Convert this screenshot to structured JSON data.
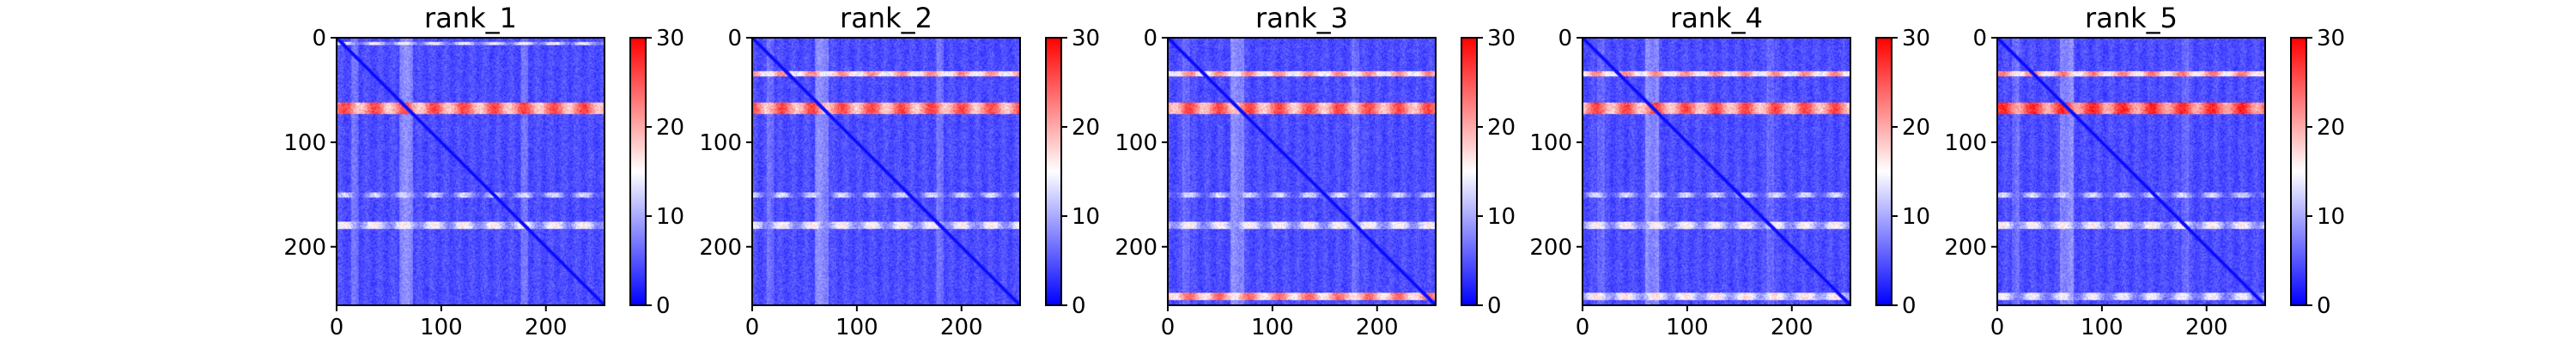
{
  "chart_data": [
    {
      "type": "heatmap",
      "title": "rank_1",
      "matrix_size": 256,
      "xlim": [
        0,
        256
      ],
      "ylim": [
        256,
        0
      ],
      "xticks": [
        0,
        100,
        200
      ],
      "yticks": [
        0,
        100,
        200
      ],
      "colorbar": {
        "range": [
          0,
          30
        ],
        "ticks": [
          0,
          10,
          20,
          30
        ],
        "colormap": "bwr"
      },
      "bands": [
        {
          "rows": [
            62,
            72
          ],
          "level": 22
        },
        {
          "rows": [
            176,
            182
          ],
          "level": 12
        },
        {
          "rows": [
            4,
            6
          ],
          "level": 11
        },
        {
          "rows": [
            148,
            152
          ],
          "level": 9
        }
      ],
      "background_level": 4.5,
      "diagonal_level": 0
    },
    {
      "type": "heatmap",
      "title": "rank_2",
      "matrix_size": 256,
      "xlim": [
        0,
        256
      ],
      "ylim": [
        256,
        0
      ],
      "xticks": [
        0,
        100,
        200
      ],
      "yticks": [
        0,
        100,
        200
      ],
      "colorbar": {
        "range": [
          0,
          30
        ],
        "ticks": [
          0,
          10,
          20,
          30
        ],
        "colormap": "bwr"
      },
      "bands": [
        {
          "rows": [
            32,
            36
          ],
          "level": 18
        },
        {
          "rows": [
            62,
            72
          ],
          "level": 22
        },
        {
          "rows": [
            176,
            182
          ],
          "level": 12
        },
        {
          "rows": [
            148,
            152
          ],
          "level": 9
        }
      ],
      "background_level": 4.5,
      "diagonal_level": 0
    },
    {
      "type": "heatmap",
      "title": "rank_3",
      "matrix_size": 256,
      "xlim": [
        0,
        256
      ],
      "ylim": [
        256,
        0
      ],
      "xticks": [
        0,
        100,
        200
      ],
      "yticks": [
        0,
        100,
        200
      ],
      "colorbar": {
        "range": [
          0,
          30
        ],
        "ticks": [
          0,
          10,
          20,
          30
        ],
        "colormap": "bwr"
      },
      "bands": [
        {
          "rows": [
            32,
            36
          ],
          "level": 18
        },
        {
          "rows": [
            62,
            72
          ],
          "level": 22
        },
        {
          "rows": [
            176,
            182
          ],
          "level": 12
        },
        {
          "rows": [
            148,
            152
          ],
          "level": 9
        },
        {
          "rows": [
            244,
            250
          ],
          "level": 20
        }
      ],
      "background_level": 4.5,
      "diagonal_level": 0
    },
    {
      "type": "heatmap",
      "title": "rank_4",
      "matrix_size": 256,
      "xlim": [
        0,
        256
      ],
      "ylim": [
        256,
        0
      ],
      "xticks": [
        0,
        100,
        200
      ],
      "yticks": [
        0,
        100,
        200
      ],
      "colorbar": {
        "range": [
          0,
          30
        ],
        "ticks": [
          0,
          10,
          20,
          30
        ],
        "colormap": "bwr"
      },
      "bands": [
        {
          "rows": [
            32,
            36
          ],
          "level": 18
        },
        {
          "rows": [
            62,
            72
          ],
          "level": 22
        },
        {
          "rows": [
            176,
            182
          ],
          "level": 12
        },
        {
          "rows": [
            148,
            152
          ],
          "level": 9
        },
        {
          "rows": [
            244,
            250
          ],
          "level": 13
        }
      ],
      "background_level": 4.5,
      "diagonal_level": 0
    },
    {
      "type": "heatmap",
      "title": "rank_5",
      "matrix_size": 256,
      "xlim": [
        0,
        256
      ],
      "ylim": [
        256,
        0
      ],
      "xticks": [
        0,
        100,
        200
      ],
      "yticks": [
        0,
        100,
        200
      ],
      "colorbar": {
        "range": [
          0,
          30
        ],
        "ticks": [
          0,
          10,
          20,
          30
        ],
        "colormap": "bwr"
      },
      "bands": [
        {
          "rows": [
            32,
            36
          ],
          "level": 19
        },
        {
          "rows": [
            62,
            72
          ],
          "level": 24
        },
        {
          "rows": [
            176,
            182
          ],
          "level": 12
        },
        {
          "rows": [
            148,
            152
          ],
          "level": 9
        },
        {
          "rows": [
            244,
            250
          ],
          "level": 11
        }
      ],
      "background_level": 4.5,
      "diagonal_level": 0
    }
  ]
}
